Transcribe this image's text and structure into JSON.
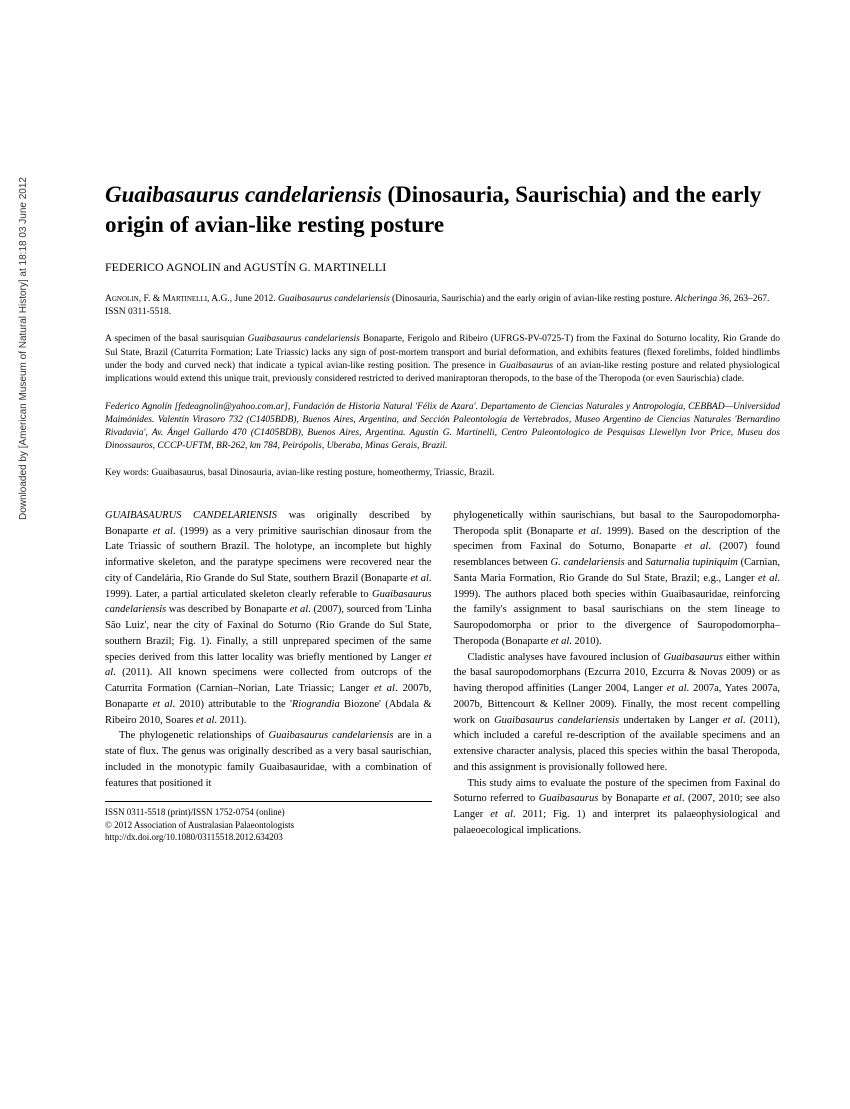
{
  "sidebar": {
    "download_info": "Downloaded by [American Museum of Natural History] at 18:18 03 June 2012"
  },
  "title": {
    "genus_species": "Guaibasaurus candelariensis",
    "rest": " (Dinosauria, Saurischia) and the early origin of avian-like resting posture"
  },
  "authors": "FEDERICO AGNOLIN and AGUSTÍN G. MARTINELLI",
  "citation": {
    "authors_caps": "Agnolin, F. & Martinelli, A.G.",
    "rest1": ", June 2012. ",
    "italic_title": "Guaibasaurus candelariensis",
    "rest2": " (Dinosauria, Saurischia) and the early origin of avian-like resting posture. ",
    "journal": "Alcheringa 36",
    "rest3": ", 263–267. ISSN 0311-5518."
  },
  "abstract": {
    "p1_a": "A specimen of the basal saurisquian ",
    "p1_italic1": "Guaibasaurus candelariensis",
    "p1_b": " Bonaparte, Ferigolo and Ribeiro (UFRGS-PV-0725-T) from the Faxinal do Soturno locality, Rio Grande do Sul State, Brazil (Caturrita Formation; Late Triassic) lacks any sign of post-mortem transport and burial deformation, and exhibits features (flexed forelimbs, folded hindlimbs under the body and curved neck) that indicate a typical avian-like resting position. The presence in ",
    "p1_italic2": "Guaibasaurus",
    "p1_c": " of an avian-like resting posture and related physiological implications would extend this unique trait, previously considered restricted to derived maniraptoran theropods, to the base of the Theropoda (or even Saurischia) clade."
  },
  "affiliations": "Federico Agnolín [fedeagnolin@yahoo.com.ar], Fundación de Historia Natural 'Félix de Azara'. Departamento de Ciencias Naturales y Antropología, CEBBAD—Universidad Maimónides. Valentín Virasoro 732 (C1405BDB), Buenos Aires, Argentina, and Sección Paleontología de Vertebrados, Museo Argentino de Ciencias Naturales 'Bernardino Rivadavia', Av. Ángel Gallardo 470 (C1405BDB), Buenos Aires, Argentina. Agustín G. Martinelli, Centro Paleontologico de Pesquisas Llewellyn Ivor Price, Museu dos Dinossauros, CCCP-UFTM, BR-262, km 784, Peirópolis, Uberaba, Minas Gerais, Brazil.",
  "keywords": "Key words: Guaibasaurus, basal Dinosauria, avian-like resting posture, homeothermy, Triassic, Brazil.",
  "body": {
    "col1": {
      "p1_caps": "GUAIBASAURUS CANDELARIENSIS",
      "p1_a": " was originally described by Bonaparte ",
      "p1_etal1": "et al",
      "p1_b": ". (1999) as a very primitive saurischian dinosaur from the Late Triassic of southern Brazil. The holotype, an incomplete but highly informative skeleton, and the paratype specimens were recovered near the city of Candelária, Rio Grande do Sul State, southern Brazil (Bonaparte ",
      "p1_etal2": "et al",
      "p1_c": ". 1999). Later, a partial articulated skeleton clearly referable to ",
      "p1_italic1": "Guaibasaurus candelariensis",
      "p1_d": " was described by Bonaparte ",
      "p1_etal3": "et al",
      "p1_e": ". (2007), sourced from 'Linha São Luiz', near the city of Faxinal do Soturno (Rio Grande do Sul State, southern Brazil; Fig. 1). Finally, a still unprepared specimen of the same species derived from this latter locality was briefly mentioned by Langer ",
      "p1_etal4": "et al",
      "p1_f": ". (2011). All known specimens were collected from outcrops of the Caturrita Formation (Carnian–Norian, Late Triassic; Langer ",
      "p1_etal5": "et al",
      "p1_g": ". 2007b, Bonaparte ",
      "p1_etal6": "et al",
      "p1_h": ". 2010) attributable to the '",
      "p1_italic2": "Riograndia",
      "p1_i": " Biozone' (Abdala & Ribeiro 2010, Soares ",
      "p1_etal7": "et al",
      "p1_j": ". 2011).",
      "p2_a": "The phylogenetic relationships of ",
      "p2_italic1": "Guaibasaurus candelariensis",
      "p2_b": " are in a state of flux. The genus was originally described as a very basal saurischian, included in the monotypic family Guaibasauridae, with a combination of features that positioned it"
    },
    "col2": {
      "p1_a": "phylogenetically within saurischians, but basal to the Sauropodomorpha-Theropoda split (Bonaparte ",
      "p1_etal1": "et al",
      "p1_b": ". 1999). Based on the description of the specimen from Faxinal do Soturno, Bonaparte ",
      "p1_etal2": "et al",
      "p1_c": ". (2007) found resemblances between ",
      "p1_italic1": "G. candelariensis",
      "p1_d": " and ",
      "p1_italic2": "Saturnalia tupiniquim",
      "p1_e": " (Carnian, Santa Maria Formation, Rio Grande do Sul State, Brazil; e.g., Langer ",
      "p1_etal3": "et al",
      "p1_f": ". 1999). The authors placed both species within Guaibasauridae, reinforcing the family's assignment to basal saurischians on the stem lineage to Sauropodomorpha or prior to the divergence of Sauropodomorpha–Theropoda (Bonaparte ",
      "p1_etal4": "et al",
      "p1_g": ". 2010).",
      "p2_a": "Cladistic analyses have favoured inclusion of ",
      "p2_italic1": "Guaibasaurus",
      "p2_b": " either within the basal sauropodomorphans (Ezcurra 2010, Ezcurra & Novas 2009) or as having theropod affinities (Langer 2004, Langer ",
      "p2_etal1": "et al",
      "p2_c": ". 2007a, Yates 2007a, 2007b, Bittencourt & Kellner 2009). Finally, the most recent compelling work on ",
      "p2_italic2": "Guaibasaurus candelariensis",
      "p2_d": " undertaken by Langer ",
      "p2_etal2": "et al",
      "p2_e": ". (2011), which included a careful re-description of the available specimens and an extensive character analysis, placed this species within the basal Theropoda, and this assignment is provisionally followed here.",
      "p3_a": "This study aims to evaluate the posture of the specimen from Faxinal do Soturno referred to ",
      "p3_italic1": "Guaibasaurus",
      "p3_b": " by Bonaparte ",
      "p3_etal1": "et al",
      "p3_c": ". (2007, 2010; see also Langer ",
      "p3_etal2": "et al",
      "p3_d": ". 2011; Fig. 1) and interpret its palaeophysiological and palaeoecological implications."
    }
  },
  "footer": {
    "issn": "ISSN 0311-5518 (print)/ISSN 1752-0754 (online)",
    "copyright": "© 2012 Association of Australasian Palaeontologists",
    "doi": "http://dx.doi.org/10.1080/03115518.2012.634203"
  }
}
